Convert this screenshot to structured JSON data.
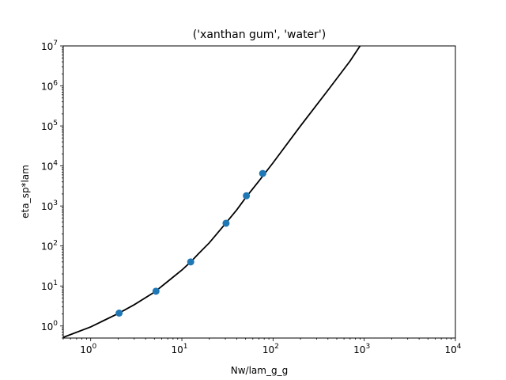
{
  "chart_data": {
    "type": "scatter",
    "title": "('xanthan gum', 'water')",
    "xlabel": "Nw/lam_g_g",
    "ylabel": "eta_sp*lam",
    "xscale": "log",
    "yscale": "log",
    "xlim": [
      0.5,
      10000
    ],
    "ylim": [
      0.5,
      10000000
    ],
    "grid": false,
    "legend": "none",
    "x_ticks": [
      {
        "value": 1,
        "base": "10",
        "exp": "0"
      },
      {
        "value": 10,
        "base": "10",
        "exp": "1"
      },
      {
        "value": 100,
        "base": "10",
        "exp": "2"
      },
      {
        "value": 1000,
        "base": "10",
        "exp": "3"
      },
      {
        "value": 10000,
        "base": "10",
        "exp": "4"
      }
    ],
    "y_ticks": [
      {
        "value": 1,
        "base": "10",
        "exp": "0"
      },
      {
        "value": 10,
        "base": "10",
        "exp": "1"
      },
      {
        "value": 100,
        "base": "10",
        "exp": "2"
      },
      {
        "value": 1000,
        "base": "10",
        "exp": "3"
      },
      {
        "value": 10000,
        "base": "10",
        "exp": "4"
      },
      {
        "value": 100000,
        "base": "10",
        "exp": "5"
      },
      {
        "value": 1000000,
        "base": "10",
        "exp": "6"
      },
      {
        "value": 10000000,
        "base": "10",
        "exp": "7"
      }
    ],
    "series": [
      {
        "kind": "scatter",
        "color": "#1f77b4",
        "points": [
          {
            "x": 2.05,
            "y": 2.1
          },
          {
            "x": 5.2,
            "y": 7.4
          },
          {
            "x": 12.5,
            "y": 40
          },
          {
            "x": 30.5,
            "y": 370
          },
          {
            "x": 51,
            "y": 1800
          },
          {
            "x": 77,
            "y": 6500
          }
        ]
      },
      {
        "kind": "line",
        "color": "#000000",
        "points": [
          {
            "x": 0.5,
            "y": 0.52
          },
          {
            "x": 1,
            "y": 0.95
          },
          {
            "x": 2,
            "y": 2.05
          },
          {
            "x": 3,
            "y": 3.4
          },
          {
            "x": 5,
            "y": 7.0
          },
          {
            "x": 7,
            "y": 13
          },
          {
            "x": 10,
            "y": 25
          },
          {
            "x": 12.5,
            "y": 40
          },
          {
            "x": 15,
            "y": 62
          },
          {
            "x": 20,
            "y": 120
          },
          {
            "x": 30,
            "y": 360
          },
          {
            "x": 40,
            "y": 800
          },
          {
            "x": 50,
            "y": 1600
          },
          {
            "x": 70,
            "y": 4200
          },
          {
            "x": 100,
            "y": 12000
          },
          {
            "x": 200,
            "y": 100000
          },
          {
            "x": 400,
            "y": 780000
          },
          {
            "x": 700,
            "y": 4200000
          },
          {
            "x": 900,
            "y": 10000000
          }
        ]
      }
    ]
  }
}
